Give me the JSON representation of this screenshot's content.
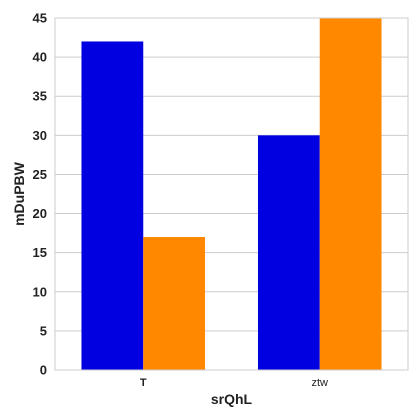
{
  "chart_data": {
    "type": "bar",
    "title": "",
    "xlabel": "srQhL",
    "ylabel": "mDuPBW",
    "categories": [
      "T",
      "ztw"
    ],
    "series": [
      {
        "values": [
          42,
          30
        ],
        "color": "#0000e0"
      },
      {
        "values": [
          17,
          45
        ],
        "color": "#ff8800"
      }
    ],
    "ylim": [
      0,
      45
    ],
    "yticks": [
      "0",
      "5",
      "10",
      "15",
      "20",
      "25",
      "30",
      "35",
      "40",
      "45"
    ],
    "grid": true,
    "legend": "none"
  }
}
